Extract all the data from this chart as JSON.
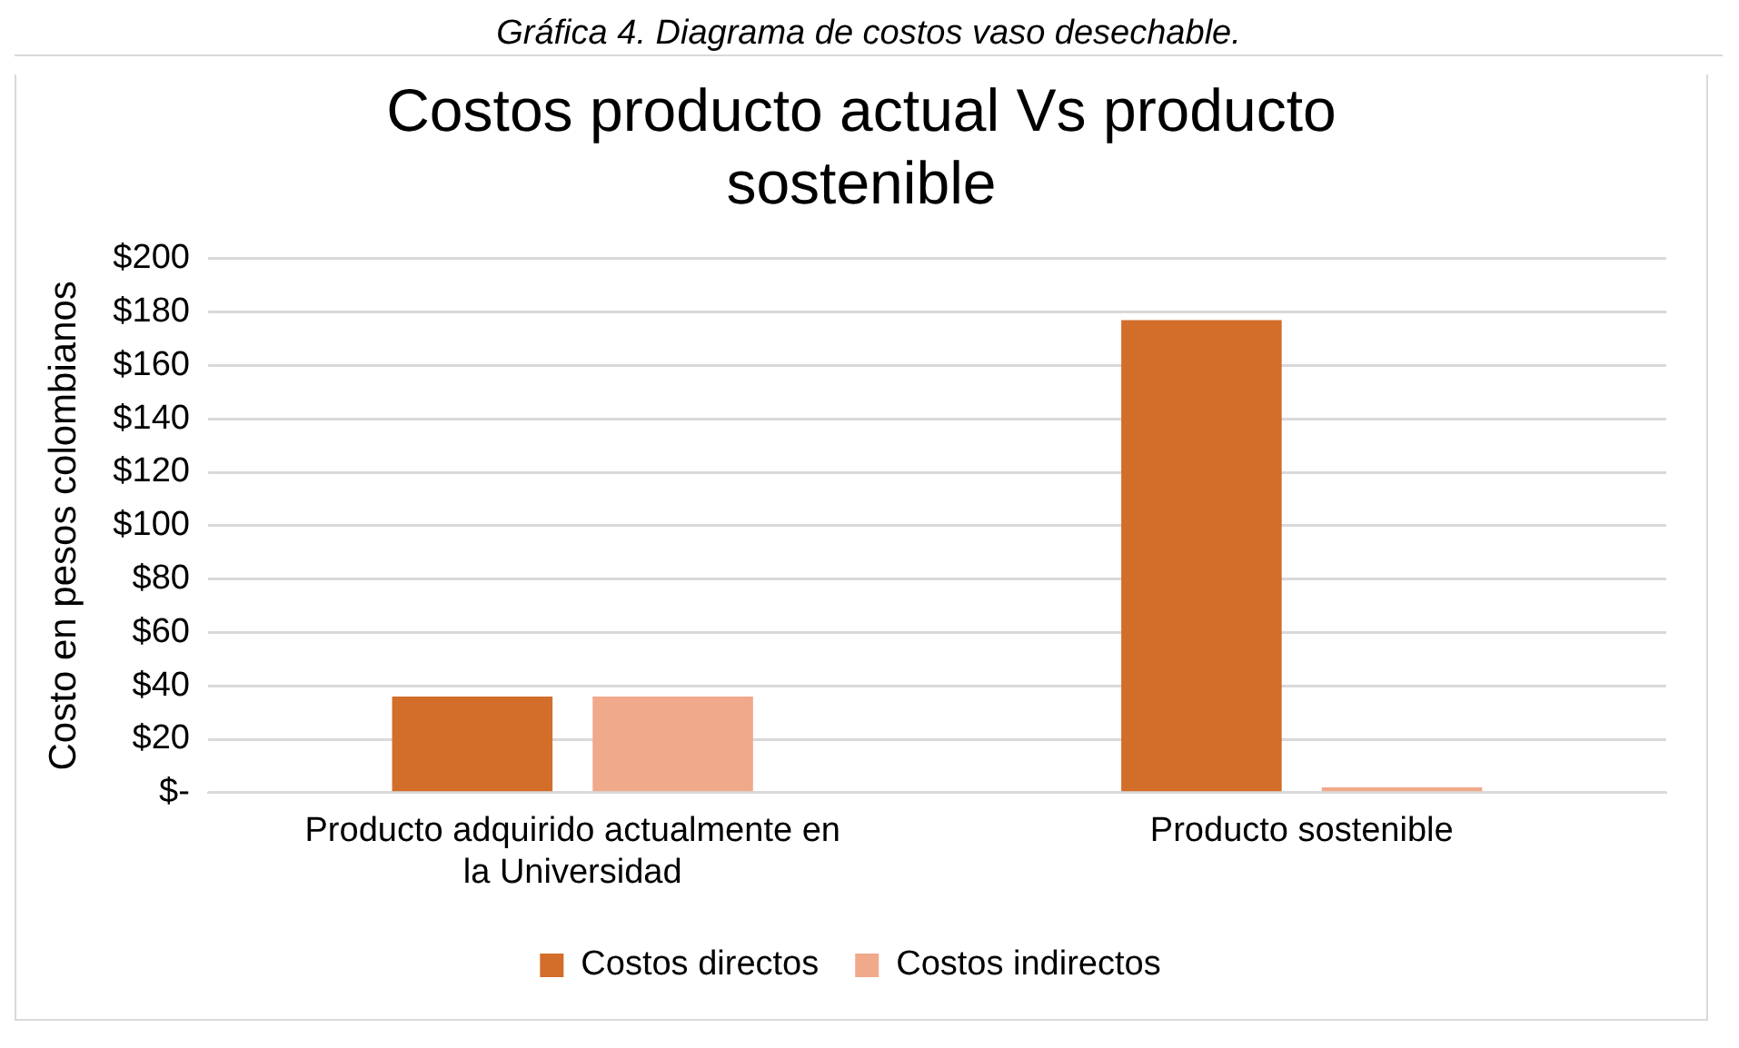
{
  "chart_data": {
    "type": "bar",
    "title": "Costos producto actual Vs producto sostenible",
    "ylabel": "Costo en pesos colombianos",
    "annotations": [
      "Gráfica 4. Diagrama de costos vaso desechable."
    ],
    "categories": [
      "Producto adquirido actualmente en la Universidad",
      "Producto sostenible"
    ],
    "series": [
      {
        "name": "Costos directos",
        "color": "#d26d2a",
        "values": [
          36,
          177
        ]
      },
      {
        "name": "Costos indirectos",
        "color": "#f0a98b",
        "values": [
          36,
          2
        ]
      }
    ],
    "ylim": [
      0,
      200
    ],
    "yticks": [
      {
        "value": 0,
        "label": "$-"
      },
      {
        "value": 20,
        "label": "$20"
      },
      {
        "value": 40,
        "label": "$40"
      },
      {
        "value": 60,
        "label": "$60"
      },
      {
        "value": 80,
        "label": "$80"
      },
      {
        "value": 100,
        "label": "$100"
      },
      {
        "value": 120,
        "label": "$120"
      },
      {
        "value": 140,
        "label": "$140"
      },
      {
        "value": 160,
        "label": "$160"
      },
      {
        "value": 180,
        "label": "$180"
      },
      {
        "value": 200,
        "label": "$200"
      }
    ],
    "grid": "y",
    "legend": "bottom"
  }
}
